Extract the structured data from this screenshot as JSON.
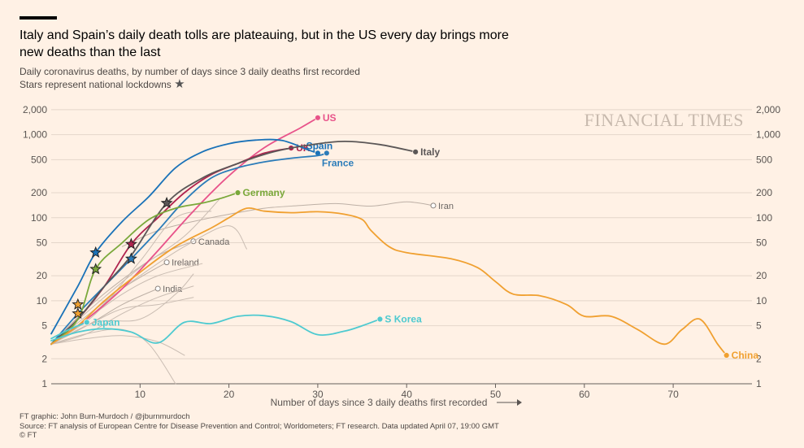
{
  "header": {
    "title": "Italy and Spain’s daily death tolls are plateauing, but in the US every day brings more new deaths than the last",
    "subtitle_line1": "Daily coronavirus deaths, by number of days since 3 daily deaths first recorded",
    "subtitle_line2": "Stars represent national lockdowns",
    "star_glyph": "★"
  },
  "watermark": "FINANCIAL TIMES",
  "footer": {
    "credit": "FT graphic: John Burn-Murdoch / @jburnmurdoch",
    "source": "Source: FT analysis of European Centre for Disease Prevention and Control; Worldometers; FT research. Data updated April 07, 19:00 GMT",
    "copyright": "© FT"
  },
  "chart_data": {
    "type": "line",
    "title": "Italy and Spain’s daily death tolls are plateauing, but in the US every day brings more new deaths than the last",
    "xlabel": "Number of days since 3 daily deaths first recorded",
    "ylabel": "",
    "xlim": [
      0,
      78
    ],
    "ylim": [
      1,
      2500
    ],
    "yscale": "log",
    "x_ticks": [
      10,
      20,
      30,
      40,
      50,
      60,
      70
    ],
    "y_ticks": [
      1,
      2,
      5,
      10,
      20,
      50,
      100,
      200,
      500,
      1000,
      2000
    ],
    "y_tick_labels": [
      "1",
      "2",
      "5",
      "10",
      "20",
      "50",
      "100",
      "200",
      "500",
      "1,000",
      "2,000"
    ],
    "grid": "horizontal",
    "legend": "none",
    "series": [
      {
        "name": "US",
        "color": "#e8538a",
        "labelled": true,
        "label_pos": "right",
        "x": [
          0,
          4,
          8,
          12,
          16,
          20,
          24,
          28,
          30
        ],
        "y": [
          3,
          6,
          14,
          40,
          120,
          320,
          700,
          1200,
          1600
        ]
      },
      {
        "name": "UK",
        "color": "#b0244f",
        "labelled": true,
        "label_pos": "right",
        "x": [
          0,
          3,
          6,
          9,
          12,
          15,
          18,
          21,
          24,
          27
        ],
        "y": [
          3,
          6,
          15,
          48,
          100,
          200,
          330,
          450,
          600,
          690
        ]
      },
      {
        "name": "Spain",
        "color": "#1a72b8",
        "labelled": true,
        "label_pos": "above",
        "x": [
          0,
          3,
          5,
          8,
          11,
          14,
          17,
          20,
          23,
          26,
          29,
          30
        ],
        "y": [
          4,
          15,
          38,
          90,
          180,
          400,
          620,
          780,
          860,
          850,
          650,
          600
        ]
      },
      {
        "name": "France",
        "color": "#2b7cb9",
        "labelled": true,
        "label_pos": "below",
        "x": [
          0,
          3,
          6,
          9,
          12,
          15,
          18,
          21,
          24,
          27,
          30,
          31
        ],
        "y": [
          3,
          7,
          15,
          32,
          70,
          160,
          300,
          400,
          470,
          520,
          560,
          600
        ]
      },
      {
        "name": "Italy",
        "color": "#5b5757",
        "labelled": true,
        "label_pos": "right",
        "x": [
          0,
          3,
          6,
          9,
          13,
          17,
          21,
          25,
          29,
          33,
          37,
          41
        ],
        "y": [
          3,
          6,
          15,
          35,
          150,
          300,
          450,
          620,
          750,
          830,
          760,
          620
        ]
      },
      {
        "name": "Germany",
        "color": "#7aa83a",
        "labelled": true,
        "label_pos": "right",
        "x": [
          0,
          3,
          5,
          8,
          11,
          14,
          17,
          19,
          21
        ],
        "y": [
          3,
          6,
          24,
          50,
          95,
          130,
          150,
          170,
          200
        ]
      },
      {
        "name": "China",
        "color": "#f0a030",
        "labelled": true,
        "label_pos": "right",
        "x": [
          0,
          3,
          6,
          10,
          14,
          18,
          20,
          22,
          24,
          27,
          30,
          33,
          35,
          36,
          38,
          40,
          45,
          48,
          50,
          52,
          55,
          58,
          60,
          63,
          66,
          69,
          71,
          73,
          75,
          76
        ],
        "y": [
          3,
          5,
          10,
          22,
          45,
          75,
          100,
          130,
          120,
          115,
          118,
          110,
          95,
          70,
          45,
          38,
          32,
          25,
          17,
          12,
          11.5,
          9,
          6.5,
          6.5,
          4.5,
          3,
          4.5,
          6,
          3,
          2.2
        ]
      },
      {
        "name": "S Korea",
        "color": "#4ecad0",
        "labelled": true,
        "label_pos": "right",
        "x": [
          0,
          3,
          6,
          9,
          12,
          15,
          18,
          21,
          24,
          27,
          30,
          33,
          35,
          37
        ],
        "y": [
          3.3,
          4.2,
          4.6,
          4.2,
          3.1,
          5.5,
          5.3,
          6.5,
          6.6,
          5.6,
          3.9,
          4.3,
          5,
          6
        ]
      },
      {
        "name": "Japan",
        "color": "#4ecad0",
        "labelled": true,
        "label_pos": "right",
        "x": [
          0,
          2,
          4
        ],
        "y": [
          3.5,
          4.5,
          5.5
        ]
      },
      {
        "name": "Iran",
        "color": "#bdb0a6",
        "labelled": true,
        "label_pos": "right",
        "x": [
          8,
          12,
          16,
          20,
          24,
          28,
          32,
          36,
          40,
          43
        ],
        "y": [
          45,
          70,
          90,
          110,
          130,
          140,
          148,
          138,
          155,
          140
        ]
      },
      {
        "name": "Canada",
        "color": "#bdb0a6",
        "labelled": true,
        "label_pos": "right",
        "x": [
          0,
          4,
          8,
          12,
          16
        ],
        "y": [
          3,
          8,
          18,
          35,
          52
        ]
      },
      {
        "name": "Ireland",
        "color": "#bdb0a6",
        "labelled": true,
        "label_pos": "right",
        "x": [
          0,
          4,
          8,
          13
        ],
        "y": [
          3,
          6,
          14,
          29
        ]
      },
      {
        "name": "India",
        "color": "#bdb0a6",
        "labelled": true,
        "label_pos": "right",
        "x": [
          0,
          4,
          8,
          12
        ],
        "y": [
          3,
          5,
          9,
          14
        ]
      },
      {
        "name": "",
        "color": "#c9bcb2",
        "labelled": false,
        "x": [
          0,
          5,
          10,
          15,
          20,
          22
        ],
        "y": [
          3,
          8,
          20,
          45,
          80,
          42
        ]
      },
      {
        "name": "",
        "color": "#c9bcb2",
        "labelled": false,
        "x": [
          0,
          5,
          10,
          15,
          19
        ],
        "y": [
          3,
          9,
          25,
          60,
          170
        ]
      },
      {
        "name": "",
        "color": "#c9bcb2",
        "labelled": false,
        "x": [
          0,
          4,
          8,
          12,
          17
        ],
        "y": [
          3,
          6,
          12,
          20,
          28
        ]
      },
      {
        "name": "",
        "color": "#c9bcb2",
        "labelled": false,
        "x": [
          0,
          4,
          8,
          12,
          16
        ],
        "y": [
          3,
          4,
          7,
          11,
          15
        ]
      },
      {
        "name": "",
        "color": "#c9bcb2",
        "labelled": false,
        "x": [
          0,
          4,
          8,
          11,
          14
        ],
        "y": [
          3,
          4,
          4.5,
          3,
          1
        ]
      },
      {
        "name": "",
        "color": "#c9bcb2",
        "labelled": false,
        "x": [
          0,
          4,
          8,
          12,
          15
        ],
        "y": [
          3,
          3.5,
          3.8,
          3.2,
          2.2
        ]
      },
      {
        "name": "",
        "color": "#c9bcb2",
        "labelled": false,
        "x": [
          0,
          4,
          8,
          12,
          16
        ],
        "y": [
          3,
          5,
          8,
          9,
          11
        ]
      },
      {
        "name": "",
        "color": "#c9bcb2",
        "labelled": false,
        "x": [
          0,
          5,
          10,
          14,
          18
        ],
        "y": [
          3,
          7,
          30,
          100,
          120
        ]
      },
      {
        "name": "",
        "color": "#c9bcb2",
        "labelled": false,
        "x": [
          0,
          5,
          10,
          14,
          16
        ],
        "y": [
          3,
          5.5,
          6,
          12,
          21
        ]
      }
    ],
    "lockdowns": [
      {
        "x": 3,
        "y": 7,
        "color": "#f0a030"
      },
      {
        "x": 3,
        "y": 9,
        "color": "#f0a030"
      },
      {
        "x": 5,
        "y": 24,
        "color": "#7aa83a"
      },
      {
        "x": 5,
        "y": 38,
        "color": "#1a72b8"
      },
      {
        "x": 9,
        "y": 32,
        "color": "#2b7cb9"
      },
      {
        "x": 9,
        "y": 48,
        "color": "#b0244f"
      },
      {
        "x": 13,
        "y": 150,
        "color": "#5b5757"
      }
    ]
  }
}
